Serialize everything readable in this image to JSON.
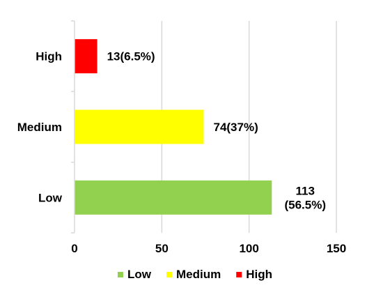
{
  "chart_data": {
    "type": "bar",
    "orientation": "horizontal",
    "categories": [
      "Low",
      "Medium",
      "High"
    ],
    "values": [
      113,
      74,
      13
    ],
    "data_labels": [
      [
        "113",
        "(56.5%)"
      ],
      [
        "74(37%)"
      ],
      [
        "13(6.5%)"
      ]
    ],
    "colors": [
      "#92d050",
      "#ffff00",
      "#ff0000"
    ],
    "xlim": [
      0,
      150
    ],
    "xticks": [
      "0",
      "50",
      "100",
      "150"
    ],
    "title": "",
    "xlabel": "",
    "ylabel": "",
    "grid": "vertical",
    "legend": {
      "position": "bottom",
      "entries": [
        "Low",
        "Medium",
        "High"
      ]
    }
  }
}
